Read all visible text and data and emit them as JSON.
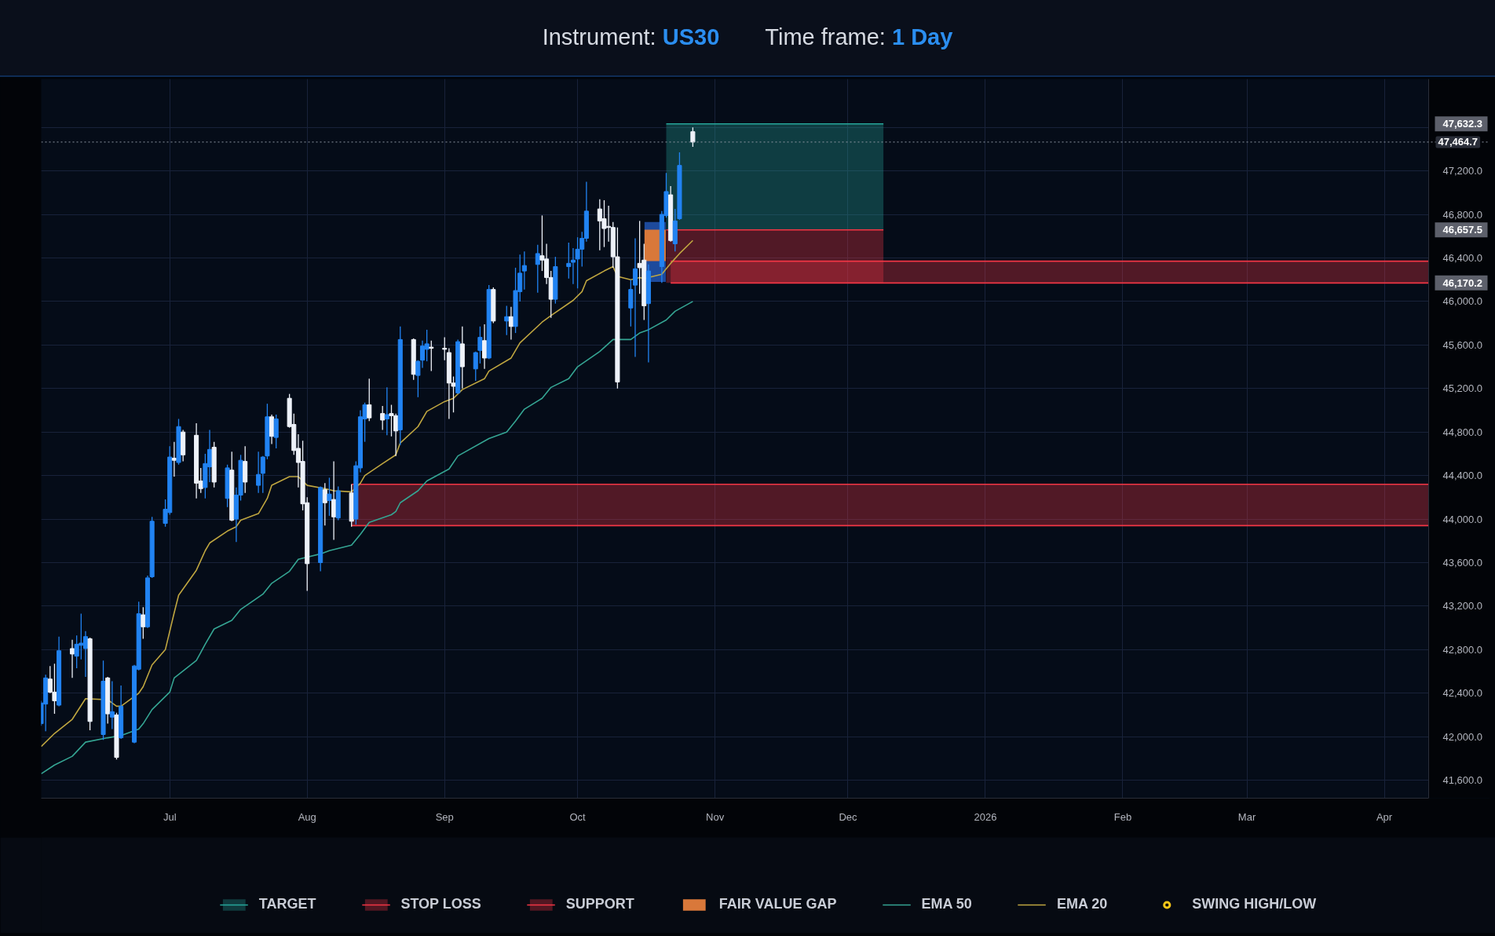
{
  "chart_data": {
    "type": "candlestick",
    "title": "Instrument: US30",
    "subtitle": "Time frame: 1 Day",
    "x": [
      "2025-06-02",
      "2025-06-03",
      "2025-06-04",
      "2025-06-05",
      "2025-06-06",
      "2025-06-09",
      "2025-06-10",
      "2025-06-11",
      "2025-06-12",
      "2025-06-13",
      "2025-06-16",
      "2025-06-17",
      "2025-06-18",
      "2025-06-19",
      "2025-06-20",
      "2025-06-23",
      "2025-06-24",
      "2025-06-25",
      "2025-06-26",
      "2025-06-27",
      "2025-06-30",
      "2025-07-01",
      "2025-07-02",
      "2025-07-03",
      "2025-07-04",
      "2025-07-07",
      "2025-07-08",
      "2025-07-09",
      "2025-07-10",
      "2025-07-11",
      "2025-07-14",
      "2025-07-15",
      "2025-07-16",
      "2025-07-17",
      "2025-07-18",
      "2025-07-21",
      "2025-07-22",
      "2025-07-23",
      "2025-07-24",
      "2025-07-25",
      "2025-07-28",
      "2025-07-29",
      "2025-07-30",
      "2025-07-31",
      "2025-08-01",
      "2025-08-04",
      "2025-08-05",
      "2025-08-06",
      "2025-08-07",
      "2025-08-08",
      "2025-08-11",
      "2025-08-12",
      "2025-08-13",
      "2025-08-14",
      "2025-08-15",
      "2025-08-18",
      "2025-08-19",
      "2025-08-20",
      "2025-08-21",
      "2025-08-22",
      "2025-08-25",
      "2025-08-26",
      "2025-08-27",
      "2025-08-28",
      "2025-08-29",
      "2025-09-01",
      "2025-09-02",
      "2025-09-03",
      "2025-09-04",
      "2025-09-05",
      "2025-09-08",
      "2025-09-09",
      "2025-09-10",
      "2025-09-11",
      "2025-09-12",
      "2025-09-15",
      "2025-09-16",
      "2025-09-17",
      "2025-09-18",
      "2025-09-19",
      "2025-09-22",
      "2025-09-23",
      "2025-09-24",
      "2025-09-25",
      "2025-09-26",
      "2025-09-29",
      "2025-09-30",
      "2025-10-01",
      "2025-10-02",
      "2025-10-03",
      "2025-10-06",
      "2025-10-07",
      "2025-10-08",
      "2025-10-09",
      "2025-10-10",
      "2025-10-13",
      "2025-10-14",
      "2025-10-15",
      "2025-10-16",
      "2025-10-17",
      "2025-10-20",
      "2025-10-21",
      "2025-10-22",
      "2025-10-23",
      "2025-10-24",
      "2025-10-27"
    ],
    "ohlc": [
      [
        42120,
        42330,
        42100,
        42310
      ],
      [
        42300,
        42570,
        42050,
        42540
      ],
      [
        42530,
        42650,
        42400,
        42410
      ],
      [
        42410,
        42670,
        42210,
        42330
      ],
      [
        42290,
        42920,
        42280,
        42790
      ],
      [
        42810,
        42890,
        42540,
        42760
      ],
      [
        42740,
        42930,
        42630,
        42850
      ],
      [
        42840,
        43130,
        42710,
        42860
      ],
      [
        42810,
        42970,
        42550,
        42920
      ],
      [
        42900,
        42910,
        42060,
        42140
      ],
      [
        42020,
        42700,
        41970,
        42510
      ],
      [
        42540,
        42550,
        42120,
        42210
      ],
      [
        42180,
        42510,
        42070,
        42230
      ],
      [
        42200,
        42220,
        41790,
        41810
      ],
      [
        41990,
        42470,
        41980,
        42280
      ],
      [
        41950,
        42660,
        41940,
        42650
      ],
      [
        42620,
        43240,
        42610,
        43130
      ],
      [
        43120,
        43190,
        42900,
        43010
      ],
      [
        43010,
        43480,
        43000,
        43460
      ],
      [
        43470,
        44020,
        43460,
        43980
      ],
      [
        43960,
        44180,
        43930,
        44090
      ],
      [
        44060,
        44670,
        44040,
        44570
      ],
      [
        44560,
        44710,
        44390,
        44540
      ],
      [
        44520,
        44920,
        44500,
        44850
      ],
      [
        44800,
        44820,
        44530,
        44590
      ],
      [
        44770,
        44880,
        44190,
        44330
      ],
      [
        44350,
        44470,
        44240,
        44280
      ],
      [
        44290,
        44600,
        44190,
        44510
      ],
      [
        44480,
        44820,
        44340,
        44640
      ],
      [
        44660,
        44710,
        44290,
        44340
      ],
      [
        44190,
        44500,
        44110,
        44470
      ],
      [
        44450,
        44620,
        43980,
        43990
      ],
      [
        44000,
        44290,
        43790,
        44220
      ],
      [
        44220,
        44590,
        44170,
        44540
      ],
      [
        44530,
        44670,
        44240,
        44340
      ],
      [
        44310,
        44620,
        44240,
        44410
      ],
      [
        44420,
        44580,
        44240,
        44570
      ],
      [
        44580,
        45060,
        44550,
        44940
      ],
      [
        44940,
        44960,
        44690,
        44760
      ],
      [
        44750,
        44960,
        44650,
        44920
      ],
      [
        45110,
        45150,
        44840,
        44850
      ],
      [
        44870,
        44970,
        44590,
        44630
      ],
      [
        44650,
        44780,
        44290,
        44520
      ],
      [
        44530,
        44720,
        44080,
        44140
      ],
      [
        44150,
        44200,
        43340,
        43590
      ],
      [
        43600,
        44300,
        43520,
        44290
      ],
      [
        44270,
        44330,
        43940,
        44150
      ],
      [
        44170,
        44380,
        44030,
        44230
      ],
      [
        44180,
        44530,
        43810,
        44020
      ],
      [
        44010,
        44300,
        43990,
        44260
      ],
      [
        44240,
        44320,
        43930,
        43980
      ],
      [
        44000,
        44530,
        43950,
        44490
      ],
      [
        44470,
        45000,
        44430,
        44940
      ],
      [
        44920,
        45070,
        44710,
        45050
      ],
      [
        45050,
        45290,
        44900,
        44930
      ],
      [
        44970,
        45040,
        44820,
        44910
      ],
      [
        44920,
        45210,
        44770,
        44960
      ],
      [
        44970,
        45050,
        44760,
        44950
      ],
      [
        44950,
        44970,
        44580,
        44810
      ],
      [
        44820,
        45770,
        44680,
        45650
      ],
      [
        45650,
        45660,
        45280,
        45330
      ],
      [
        45320,
        45460,
        45120,
        45450
      ],
      [
        45460,
        45640,
        45390,
        45590
      ],
      [
        45560,
        45740,
        45450,
        45610
      ],
      [
        45580,
        45640,
        45360,
        45570
      ],
      [
        45570,
        45670,
        45460,
        45560
      ],
      [
        45530,
        45570,
        44920,
        45250
      ],
      [
        45250,
        45310,
        44980,
        45220
      ],
      [
        45160,
        45650,
        45150,
        45630
      ],
      [
        45610,
        45770,
        45200,
        45400
      ],
      [
        45380,
        45540,
        45270,
        45530
      ],
      [
        45550,
        45770,
        45430,
        45670
      ],
      [
        45640,
        45790,
        45380,
        45480
      ],
      [
        45480,
        46150,
        45470,
        46110
      ],
      [
        46110,
        46130,
        45800,
        45820
      ],
      [
        45820,
        45960,
        45690,
        45860
      ],
      [
        45860,
        45950,
        45650,
        45770
      ],
      [
        45770,
        46310,
        45710,
        46100
      ],
      [
        46090,
        46430,
        46000,
        46260
      ],
      [
        46280,
        46460,
        46110,
        46330
      ],
      [
        46340,
        46520,
        46080,
        46440
      ],
      [
        46420,
        46790,
        46280,
        46380
      ],
      [
        46390,
        46530,
        46160,
        46220
      ],
      [
        46220,
        46280,
        45850,
        46020
      ],
      [
        46020,
        46410,
        45980,
        46320
      ],
      [
        46320,
        46540,
        46210,
        46350
      ],
      [
        46360,
        46490,
        46160,
        46380
      ],
      [
        46390,
        46590,
        46120,
        46480
      ],
      [
        46480,
        46640,
        46320,
        46580
      ],
      [
        46580,
        47100,
        46550,
        46830
      ],
      [
        46850,
        46940,
        46470,
        46740
      ],
      [
        46760,
        46930,
        46500,
        46670
      ],
      [
        46690,
        46880,
        46550,
        46680
      ],
      [
        46680,
        46730,
        46310,
        46410
      ],
      [
        46410,
        46680,
        45200,
        45260
      ],
      [
        45940,
        46200,
        45770,
        46110
      ],
      [
        46150,
        46580,
        45490,
        46300
      ],
      [
        46350,
        46740,
        46070,
        46310
      ],
      [
        46380,
        46530,
        45830,
        45960
      ],
      [
        45980,
        46340,
        45440,
        46280
      ],
      [
        46320,
        46830,
        46170,
        46800
      ],
      [
        46790,
        47180,
        46770,
        47010
      ],
      [
        46980,
        47060,
        46550,
        46560
      ],
      [
        46530,
        46850,
        46460,
        46740
      ],
      [
        46760,
        47370,
        46750,
        47250
      ],
      [
        47560,
        47600,
        47420,
        47464.7
      ]
    ],
    "colors": [
      "#2183f2",
      "#2183f2",
      "#eef2f9",
      "#eef2f9",
      "#2183f2",
      "#eef2f9",
      "#2183f2",
      "#2183f2",
      "#2183f2",
      "#eef2f9",
      "#2183f2",
      "#eef2f9",
      "#2183f2",
      "#eef2f9",
      "#2183f2",
      "#2183f2",
      "#2183f2",
      "#eef2f9",
      "#2183f2",
      "#2183f2",
      "#2183f2",
      "#2183f2",
      "#eef2f9",
      "#2183f2",
      "#eef2f9",
      "#eef2f9",
      "#eef2f9",
      "#2183f2",
      "#2183f2",
      "#eef2f9",
      "#2183f2",
      "#eef2f9",
      "#2183f2",
      "#2183f2",
      "#eef2f9",
      "#2183f2",
      "#2183f2",
      "#2183f2",
      "#eef2f9",
      "#2183f2",
      "#eef2f9",
      "#eef2f9",
      "#eef2f9",
      "#eef2f9",
      "#eef2f9",
      "#2183f2",
      "#eef2f9",
      "#2183f2",
      "#eef2f9",
      "#2183f2",
      "#eef2f9",
      "#2183f2",
      "#2183f2",
      "#2183f2",
      "#eef2f9",
      "#eef2f9",
      "#2183f2",
      "#eef2f9",
      "#eef2f9",
      "#2183f2",
      "#eef2f9",
      "#2183f2",
      "#2183f2",
      "#2183f2",
      "#eef2f9",
      "#eef2f9",
      "#eef2f9",
      "#eef2f9",
      "#2183f2",
      "#eef2f9",
      "#2183f2",
      "#2183f2",
      "#eef2f9",
      "#2183f2",
      "#eef2f9",
      "#2183f2",
      "#eef2f9",
      "#2183f2",
      "#2183f2",
      "#2183f2",
      "#2183f2",
      "#eef2f9",
      "#eef2f9",
      "#eef2f9",
      "#2183f2",
      "#2183f2",
      "#2183f2",
      "#2183f2",
      "#2183f2",
      "#2183f2",
      "#eef2f9",
      "#eef2f9",
      "#eef2f9",
      "#eef2f9",
      "#eef2f9",
      "#2183f2",
      "#2183f2",
      "#eef2f9",
      "#eef2f9",
      "#2183f2",
      "#2183f2",
      "#2183f2",
      "#eef2f9",
      "#2183f2",
      "#2183f2",
      "#eef2f9"
    ],
    "series": [
      {
        "name": "TARGET",
        "type": "line",
        "color": "#26a69a",
        "x": [
          "2025-10-21",
          "2025-12-09"
        ],
        "values": [
          47632.3,
          47632.3
        ],
        "lower": [
          46657.5,
          46657.5
        ],
        "upper": [
          47632.3,
          47632.3
        ]
      },
      {
        "name": "STOP LOSS",
        "type": "line",
        "color": "#f23645",
        "x": [
          "2025-10-21",
          "2025-12-09"
        ],
        "values": [
          46657.5,
          46657.5
        ],
        "lower": [
          46170.2,
          46170.2
        ],
        "upper": [
          46657.5,
          46657.5
        ]
      },
      {
        "name": "SUPPORT",
        "type": "line",
        "color": "#f23645",
        "x": [
          "2025-10-22",
          "2026-04-11"
        ],
        "values": [
          46370,
          46370
        ],
        "lower": [
          46170,
          46170
        ],
        "upper": [
          46370,
          46370
        ]
      },
      {
        "type": "line",
        "color": "#f23645",
        "x": [
          "2025-10-22",
          "2026-04-11"
        ],
        "values": [
          46170,
          46170
        ]
      },
      {
        "type": "line",
        "color": "#f23645",
        "x": [
          "2025-08-11",
          "2026-04-11"
        ],
        "values": [
          44320,
          44320
        ],
        "lower": [
          43940,
          43940
        ],
        "upper": [
          44320,
          44320
        ]
      },
      {
        "type": "line",
        "color": "#f23645",
        "x": [
          "2025-08-11",
          "2026-04-11"
        ],
        "values": [
          43940,
          43940
        ]
      },
      {
        "type": "bar",
        "color": "#1d4a9c",
        "x": [
          "2025-10-18T12:00"
        ],
        "values": [
          550
        ],
        "base": [
          46180
        ]
      },
      {
        "name": "FAIR VALUE GAP",
        "type": "bar",
        "color": "#d9783a",
        "x": [
          "2025-10-18T12:00"
        ],
        "values": [
          290
        ],
        "base": [
          46370
        ]
      },
      {
        "name": "EMA 50",
        "type": "line",
        "color": "#35a593",
        "x": [
          "2025-06-02",
          "2025-06-05",
          "2025-06-09",
          "2025-06-12",
          "2025-06-17",
          "2025-06-20",
          "2025-06-24",
          "2025-06-25",
          "2025-06-27",
          "2025-07-01",
          "2025-07-02",
          "2025-07-07",
          "2025-07-09",
          "2025-07-11",
          "2025-07-15",
          "2025-07-17",
          "2025-07-22",
          "2025-07-24",
          "2025-07-28",
          "2025-07-30",
          "2025-08-01",
          "2025-08-04",
          "2025-08-06",
          "2025-08-11",
          "2025-08-13",
          "2025-08-15",
          "2025-08-20",
          "2025-08-21",
          "2025-08-22",
          "2025-08-26",
          "2025-08-28",
          "2025-09-02",
          "2025-09-04",
          "2025-09-11",
          "2025-09-15",
          "2025-09-17",
          "2025-09-19",
          "2025-09-23",
          "2025-09-25",
          "2025-09-29",
          "2025-10-01",
          "2025-10-06",
          "2025-10-09",
          "2025-10-13",
          "2025-10-15",
          "2025-10-17",
          "2025-10-21",
          "2025-10-23",
          "2025-10-27"
        ],
        "values": [
          41660,
          41740,
          41820,
          41950,
          41990,
          42010,
          42070,
          42120,
          42250,
          42410,
          42540,
          42700,
          42850,
          42990,
          43070,
          43170,
          43310,
          43410,
          43520,
          43630,
          43650,
          43680,
          43710,
          43760,
          43860,
          43970,
          44040,
          44070,
          44150,
          44260,
          44350,
          44460,
          44580,
          44740,
          44800,
          44900,
          45010,
          45110,
          45210,
          45290,
          45400,
          45540,
          45650,
          45650,
          45710,
          45740,
          45830,
          45910,
          46000
        ]
      },
      {
        "name": "EMA 20",
        "type": "line",
        "color": "#bfa640",
        "x": [
          "2025-06-02",
          "2025-06-05",
          "2025-06-09",
          "2025-06-12",
          "2025-06-17",
          "2025-06-19",
          "2025-06-20",
          "2025-06-24",
          "2025-06-25",
          "2025-06-27",
          "2025-06-30",
          "2025-07-02",
          "2025-07-03",
          "2025-07-07",
          "2025-07-09",
          "2025-07-10",
          "2025-07-14",
          "2025-07-16",
          "2025-07-17",
          "2025-07-21",
          "2025-07-23",
          "2025-07-24",
          "2025-07-28",
          "2025-07-30",
          "2025-08-01",
          "2025-08-05",
          "2025-08-07",
          "2025-08-11",
          "2025-08-13",
          "2025-08-14",
          "2025-08-18",
          "2025-08-21",
          "2025-08-22",
          "2025-08-26",
          "2025-08-28",
          "2025-09-01",
          "2025-09-03",
          "2025-09-05",
          "2025-09-10",
          "2025-09-11",
          "2025-09-16",
          "2025-09-18",
          "2025-09-23",
          "2025-09-25",
          "2025-09-30",
          "2025-10-02",
          "2025-10-03",
          "2025-10-07",
          "2025-10-09",
          "2025-10-10",
          "2025-10-13",
          "2025-10-15",
          "2025-10-16",
          "2025-10-20",
          "2025-10-21",
          "2025-10-22",
          "2025-10-24",
          "2025-10-27"
        ],
        "values": [
          41910,
          42030,
          42160,
          42350,
          42340,
          42280,
          42280,
          42400,
          42460,
          42660,
          42800,
          43140,
          43300,
          43530,
          43710,
          43780,
          43890,
          43930,
          43990,
          44050,
          44190,
          44310,
          44390,
          44390,
          44310,
          44280,
          44260,
          44250,
          44330,
          44400,
          44510,
          44590,
          44700,
          44850,
          44990,
          45080,
          45110,
          45190,
          45290,
          45360,
          45480,
          45620,
          45810,
          45870,
          46010,
          46090,
          46190,
          46280,
          46320,
          46230,
          46200,
          46220,
          46210,
          46250,
          46300,
          46350,
          46440,
          46560
        ]
      },
      {
        "name": "SWING HIGH/LOW",
        "type": "scatter",
        "color": "#f5c518",
        "marker": "circle",
        "values": [
          null,
          null,
          null,
          null,
          null,
          null,
          null,
          null,
          null,
          null,
          null,
          null,
          null,
          null,
          null,
          null,
          null,
          null,
          null,
          null,
          null,
          null,
          null,
          null,
          null,
          null,
          null,
          null,
          null,
          null,
          null,
          null,
          null,
          null,
          null,
          null,
          null,
          null,
          null,
          null,
          null,
          null,
          null,
          null,
          null,
          null,
          null,
          null,
          null,
          null,
          null,
          null,
          null,
          null,
          null,
          null,
          null,
          null,
          null,
          null,
          null,
          null,
          null,
          null,
          null,
          null,
          null,
          null,
          null,
          null,
          null,
          null,
          null,
          null,
          null,
          null,
          null,
          null,
          null,
          null,
          null,
          null,
          null,
          null,
          null,
          null,
          null,
          null,
          null,
          null,
          null,
          null,
          null,
          null,
          null,
          null,
          null,
          null,
          null,
          null,
          null,
          null,
          null,
          null,
          null,
          null
        ]
      }
    ],
    "ref_lines": [
      {
        "axis": "y",
        "value": 47464.7,
        "label": "47,464.7",
        "color": "#8f96a3",
        "line_style": "dotted"
      }
    ],
    "xlim": [
      "2025-06-02",
      "2026-04-11"
    ],
    "ylim": [
      41435,
      48045
    ],
    "xticks": [
      {
        "value": "2025-07-01",
        "label": "Jul"
      },
      {
        "value": "2025-08-01",
        "label": "Aug"
      },
      {
        "value": "2025-09-01",
        "label": "Sep"
      },
      {
        "value": "2025-10-01",
        "label": "Oct"
      },
      {
        "value": "2025-11-01",
        "label": "Nov"
      },
      {
        "value": "2025-12-01",
        "label": "Dec"
      },
      {
        "value": "2026-01-01",
        "label": "2026"
      },
      {
        "value": "2026-02-01",
        "label": "Feb"
      },
      {
        "value": "2026-03-01",
        "label": "Mar"
      },
      {
        "value": "2026-04-01",
        "label": "Apr"
      }
    ],
    "yticks": [
      {
        "value": 41600,
        "label": "41,600.0"
      },
      {
        "value": 42000,
        "label": "42,000.0"
      },
      {
        "value": 42400,
        "label": "42,400.0"
      },
      {
        "value": 42800,
        "label": "42,800.0"
      },
      {
        "value": 43200,
        "label": "43,200.0"
      },
      {
        "value": 43600,
        "label": "43,600.0"
      },
      {
        "value": 44000,
        "label": "44,000.0"
      },
      {
        "value": 44400,
        "label": "44,400.0"
      },
      {
        "value": 44800,
        "label": "44,800.0"
      },
      {
        "value": 45200,
        "label": "45,200.0"
      },
      {
        "value": 45600,
        "label": "45,600.0"
      },
      {
        "value": 46000,
        "label": "46,000.0"
      },
      {
        "value": 46400,
        "label": "46,400.0"
      },
      {
        "value": 46800,
        "label": "46,800.0"
      },
      {
        "value": 47200,
        "label": "47,200.0"
      },
      {
        "value": 47600,
        "label": null
      }
    ],
    "y2lim": [
      41435,
      48045
    ],
    "y2ticks": [
      {
        "value": 47632.3,
        "label": "47,632.3"
      },
      {
        "value": 46657.5,
        "label": "46,657.5"
      },
      {
        "value": 46170.2,
        "label": "46,170.2"
      }
    ],
    "grid": true,
    "legend": "bottom"
  }
}
